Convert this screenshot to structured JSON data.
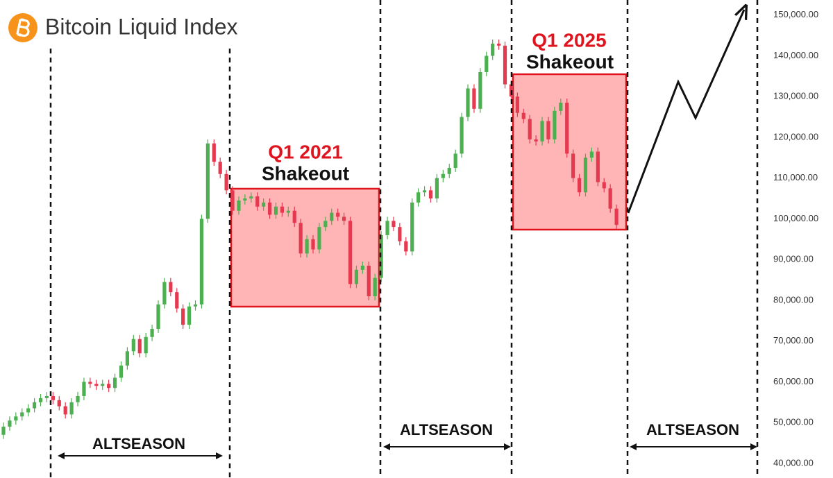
{
  "chart_data": {
    "type": "candlestick",
    "title": "Bitcoin Liquid Index",
    "up_color": "#4caf50",
    "down_color": "#e53950",
    "ylim": [
      36400,
      153700
    ],
    "yticks": [
      {
        "value": 40000,
        "label": "40,000.00"
      },
      {
        "value": 50000,
        "label": "50,000.00"
      },
      {
        "value": 60000,
        "label": "60,000.00"
      },
      {
        "value": 70000,
        "label": "70,000.00"
      },
      {
        "value": 80000,
        "label": "80,000.00"
      },
      {
        "value": 90000,
        "label": "90,000.00"
      },
      {
        "value": 100000,
        "label": "100,000.00"
      },
      {
        "value": 110000,
        "label": "110,000.00"
      },
      {
        "value": 120000,
        "label": "120,000.00"
      },
      {
        "value": 130000,
        "label": "130,000.00"
      },
      {
        "value": 140000,
        "label": "140,000.00"
      },
      {
        "value": 150000,
        "label": "150,000.00"
      }
    ],
    "annotations": [
      "Q1 2021",
      "Shakeout",
      "Q1 2025",
      "Shakeout",
      "ALTSEASON",
      "ALTSEASON",
      "ALTSEASON"
    ],
    "open": [
      47000,
      49000,
      50500,
      51500,
      52500,
      53500,
      55000,
      56000,
      56500,
      55500,
      54000,
      52000,
      55000,
      56500,
      60000,
      59500,
      59000,
      59500,
      58500,
      61000,
      64000,
      67500,
      70500,
      67000,
      71000,
      73000,
      79000,
      84500,
      82000,
      78000,
      74000,
      78500,
      79000,
      100000,
      118500,
      114000,
      111000,
      107000,
      102000,
      104500,
      105000,
      105500,
      103000,
      104000,
      101000,
      103000,
      101500,
      102000,
      99000,
      91500,
      95000,
      92500,
      98000,
      99500,
      101500,
      100500,
      99500,
      84000,
      87500,
      88500,
      81000,
      85500,
      96000,
      99500,
      98000,
      94500,
      92000,
      104000,
      106500,
      107000,
      105000,
      110000,
      111000,
      112500,
      116000,
      125000,
      132000,
      127000,
      136000,
      140000,
      143000,
      142500,
      133000,
      130000,
      126000,
      124500,
      119500,
      119000,
      124000,
      119500,
      126500,
      128500,
      116000,
      110000,
      106500,
      115000,
      116500,
      109000,
      107500,
      102500
    ],
    "high": [
      50000,
      51500,
      52500,
      53500,
      54500,
      56000,
      57000,
      57500,
      57500,
      56500,
      55000,
      56000,
      57500,
      61000,
      61000,
      60500,
      60500,
      60500,
      62000,
      65000,
      68500,
      71500,
      71500,
      72000,
      74000,
      80000,
      85500,
      85500,
      83000,
      79000,
      79500,
      80000,
      101000,
      119500,
      119500,
      115000,
      112000,
      108000,
      105500,
      106000,
      106500,
      106500,
      105000,
      105000,
      104000,
      104000,
      103000,
      103000,
      100000,
      96000,
      96000,
      99000,
      100500,
      102500,
      102500,
      101500,
      100500,
      88500,
      89500,
      89500,
      86500,
      97000,
      100500,
      100500,
      99000,
      95500,
      105000,
      107500,
      108000,
      108000,
      111000,
      112000,
      113500,
      117000,
      126000,
      133000,
      133000,
      137000,
      141000,
      144000,
      144000,
      143500,
      134000,
      131000,
      127000,
      125500,
      120500,
      125000,
      125000,
      127500,
      129500,
      129500,
      117000,
      111000,
      116000,
      117500,
      117500,
      110000,
      108500,
      103500
    ],
    "low": [
      46000,
      48000,
      49500,
      50500,
      51500,
      52500,
      54000,
      55000,
      54500,
      53000,
      51000,
      51000,
      54000,
      55500,
      58500,
      58000,
      58000,
      57500,
      57500,
      60000,
      63000,
      66500,
      66000,
      66000,
      70000,
      72000,
      78000,
      81000,
      77000,
      73000,
      73000,
      77500,
      78000,
      99000,
      113000,
      110000,
      106000,
      101000,
      101000,
      103500,
      104000,
      102000,
      102000,
      100000,
      100000,
      100500,
      100500,
      98000,
      90500,
      90500,
      91500,
      91500,
      97000,
      98500,
      99500,
      98500,
      83000,
      83000,
      86500,
      80000,
      80000,
      84500,
      95000,
      97000,
      93500,
      91000,
      91000,
      103000,
      105500,
      104000,
      104000,
      109000,
      110000,
      111500,
      115000,
      124000,
      126000,
      126000,
      135000,
      139000,
      141500,
      132000,
      129000,
      125000,
      123500,
      118500,
      118000,
      118000,
      118500,
      118500,
      125500,
      115000,
      109000,
      105500,
      105500,
      114000,
      108000,
      106500,
      101500,
      97500
    ],
    "close": [
      49000,
      50500,
      51500,
      52500,
      53500,
      55000,
      56000,
      56500,
      55500,
      54000,
      52000,
      55000,
      56500,
      60000,
      59500,
      59000,
      59500,
      58500,
      61000,
      64000,
      67500,
      70500,
      67000,
      71000,
      73000,
      79000,
      84500,
      82000,
      78000,
      74000,
      78500,
      79000,
      100000,
      118500,
      114000,
      111000,
      107000,
      102000,
      104500,
      105000,
      105500,
      103000,
      104000,
      101000,
      103000,
      101500,
      102000,
      99000,
      91500,
      95000,
      92500,
      98000,
      99500,
      101500,
      100500,
      99500,
      84000,
      87500,
      88500,
      81000,
      85500,
      96000,
      99500,
      98000,
      94500,
      92000,
      104000,
      106500,
      107000,
      105000,
      110000,
      111000,
      112500,
      116000,
      125000,
      132000,
      127000,
      136000,
      140000,
      143000,
      142500,
      133000,
      130000,
      126000,
      124500,
      119500,
      119000,
      124000,
      119500,
      126500,
      128500,
      116000,
      110000,
      106500,
      115000,
      116500,
      109000,
      107500,
      102500,
      98500
    ]
  }
}
